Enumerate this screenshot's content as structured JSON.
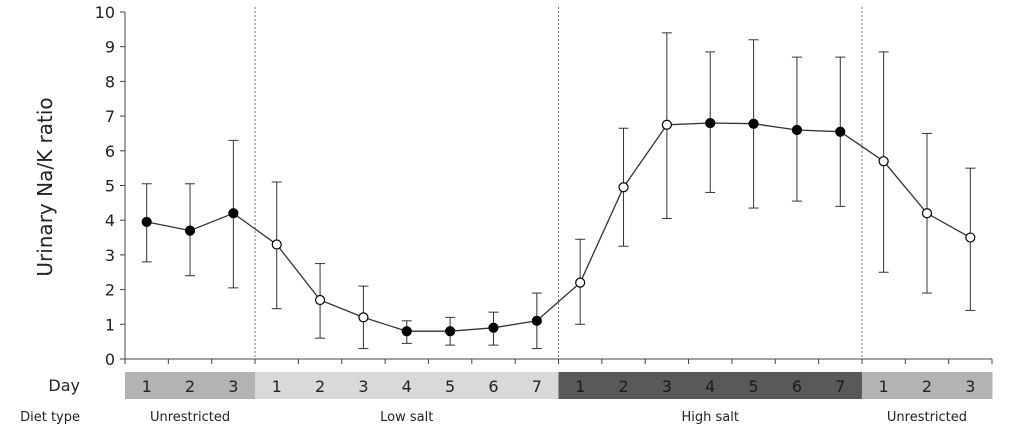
{
  "chart_data": {
    "type": "line",
    "title": "",
    "ylabel": "Urinary Na/K ratio",
    "ylim": [
      0,
      10
    ],
    "yticks": [
      0,
      1,
      2,
      3,
      4,
      5,
      6,
      7,
      8,
      9,
      10
    ],
    "grid": false,
    "row_labels": {
      "day": "Day",
      "diet": "Diet type"
    },
    "phases": [
      {
        "label": "Unrestricted",
        "days": [
          "1",
          "2",
          "3"
        ],
        "color": "#b3b3b3"
      },
      {
        "label": "Low salt",
        "days": [
          "1",
          "2",
          "3",
          "4",
          "5",
          "6",
          "7"
        ],
        "color": "#d9d9d9"
      },
      {
        "label": "High salt",
        "days": [
          "1",
          "2",
          "3",
          "4",
          "5",
          "6",
          "7"
        ],
        "color": "#595959"
      },
      {
        "label": "Unrestricted",
        "days": [
          "1",
          "2",
          "3"
        ],
        "color": "#b3b3b3"
      }
    ],
    "series": [
      {
        "values": [
          3.95,
          3.7,
          4.2,
          3.3,
          1.7,
          1.2,
          0.8,
          0.8,
          0.9,
          1.1,
          2.2,
          4.95,
          6.75,
          6.8,
          6.78,
          6.6,
          6.55,
          5.7,
          4.2,
          3.5
        ],
        "err_low": [
          2.8,
          2.4,
          2.05,
          1.45,
          0.6,
          0.3,
          0.45,
          0.4,
          0.4,
          0.3,
          1.0,
          3.25,
          4.05,
          4.8,
          4.35,
          4.55,
          4.4,
          2.5,
          1.9,
          1.4
        ],
        "err_high": [
          5.05,
          5.05,
          6.3,
          5.1,
          2.75,
          2.1,
          1.1,
          1.2,
          1.35,
          1.9,
          3.45,
          6.65,
          9.4,
          8.85,
          9.2,
          8.7,
          8.7,
          8.85,
          6.5,
          5.5
        ],
        "marker_filled": [
          true,
          true,
          true,
          false,
          false,
          false,
          true,
          true,
          true,
          true,
          false,
          false,
          false,
          true,
          true,
          true,
          true,
          false,
          false,
          false
        ]
      }
    ]
  }
}
